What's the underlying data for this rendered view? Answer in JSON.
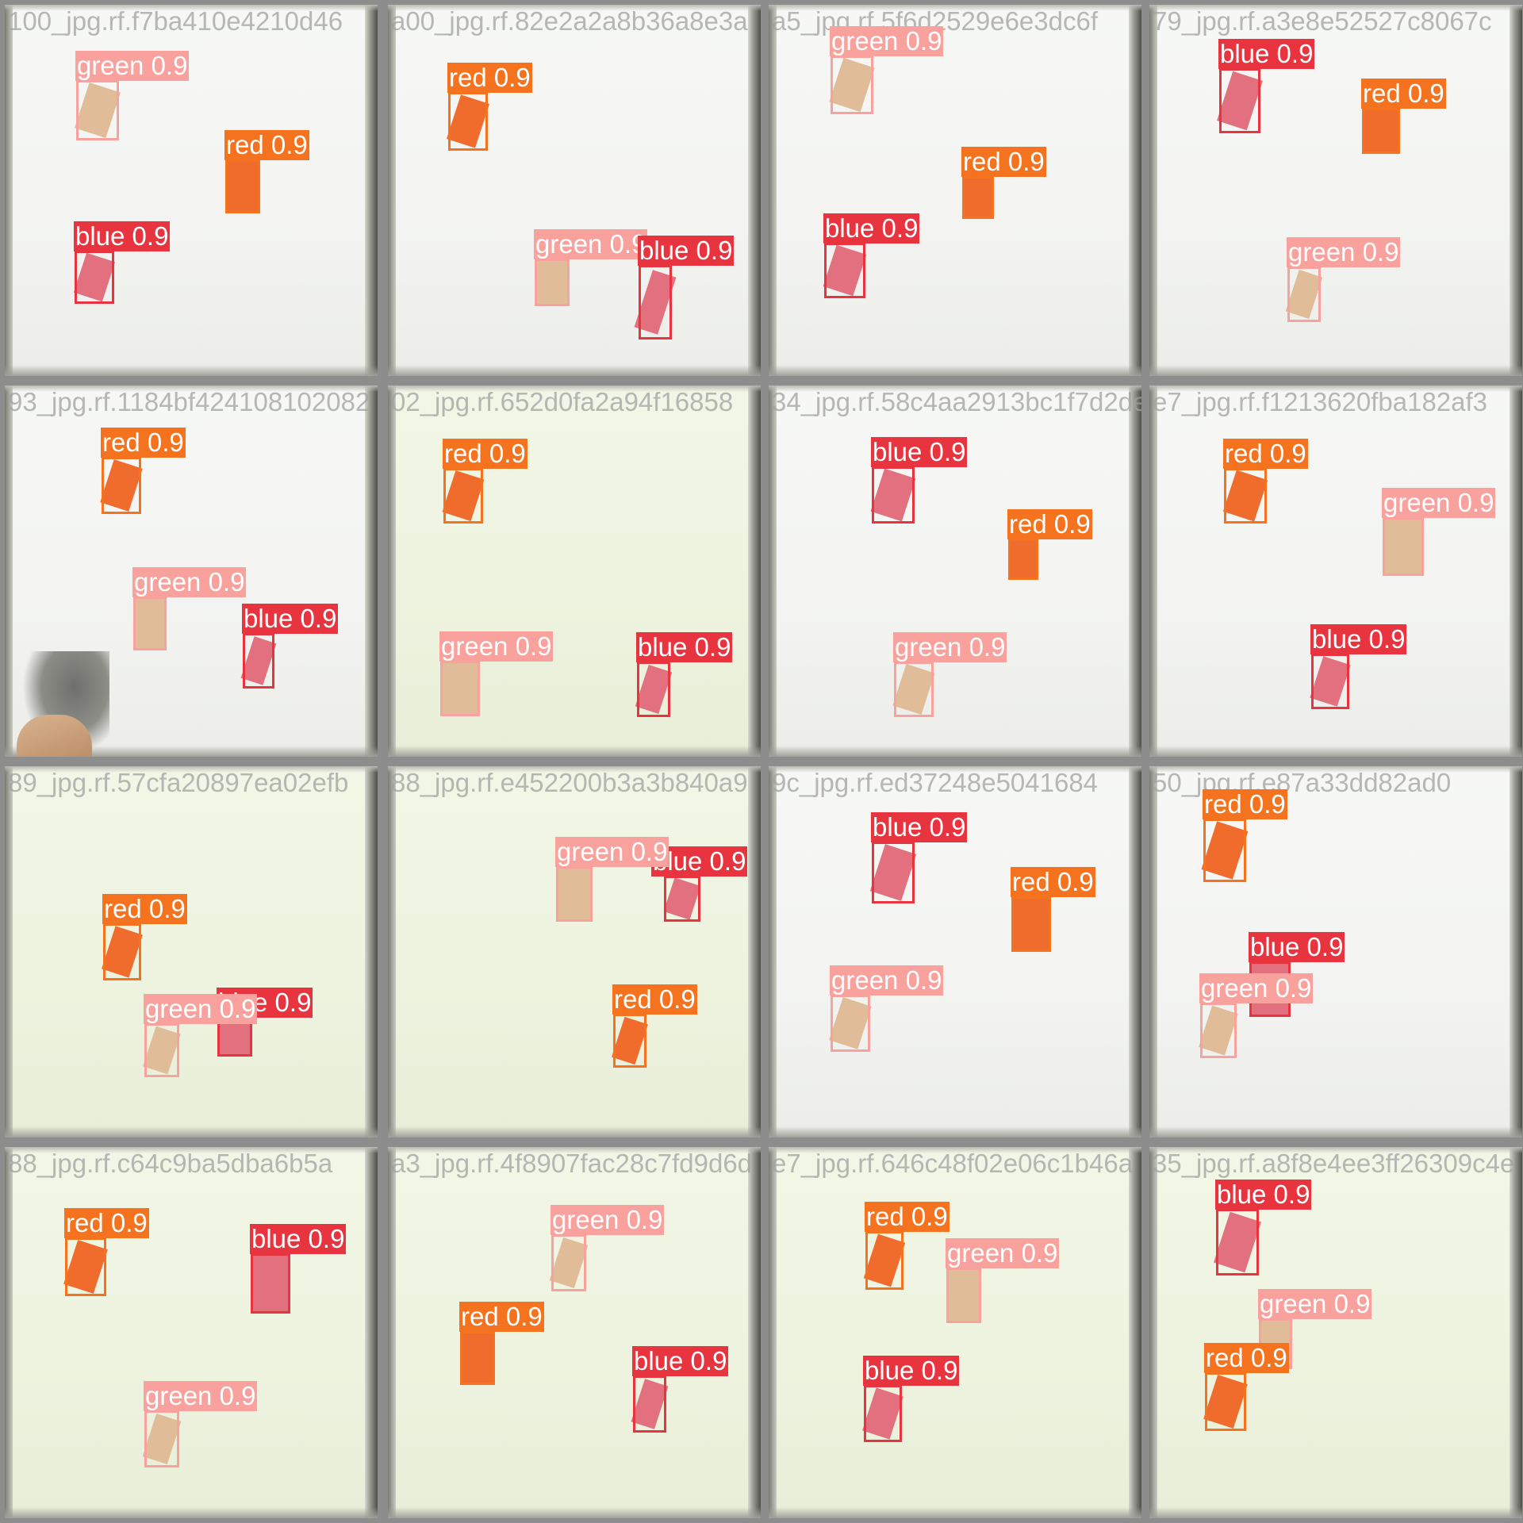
{
  "tiles": [
    {
      "filename": "100_jpg.rf.f7ba410e4210d46",
      "tint": false,
      "detections": [
        {
          "cls": "green",
          "label": "green 0.9"
        },
        {
          "cls": "red",
          "label": "red 0.9"
        },
        {
          "cls": "blue",
          "label": "blue 0.9"
        }
      ]
    },
    {
      "filename": "a00_jpg.rf.82e2a2a8b36a8e3a",
      "tint": false,
      "detections": [
        {
          "cls": "red",
          "label": "red 0.9"
        },
        {
          "cls": "green",
          "label": "green 0.9"
        },
        {
          "cls": "blue",
          "label": "blue 0.9"
        }
      ]
    },
    {
      "filename": "a5_jpg.rf.5f6d2529e6e3dc6f",
      "tint": false,
      "detections": [
        {
          "cls": "green",
          "label": "green 0.9"
        },
        {
          "cls": "red",
          "label": "red 0.9"
        },
        {
          "cls": "blue",
          "label": "blue 0.9"
        }
      ]
    },
    {
      "filename": "79_jpg.rf.a3e8e52527c8067c",
      "tint": false,
      "detections": [
        {
          "cls": "blue",
          "label": "blue 0.9"
        },
        {
          "cls": "red",
          "label": "red 0.9"
        },
        {
          "cls": "green",
          "label": "green 0.9"
        }
      ]
    },
    {
      "filename": "93_jpg.rf.1184bf424108102082",
      "tint": false,
      "hand": true,
      "detections": [
        {
          "cls": "red",
          "label": "red 0.9"
        },
        {
          "cls": "green",
          "label": "green 0.9"
        },
        {
          "cls": "blue",
          "label": "blue 0.9"
        }
      ]
    },
    {
      "filename": "02_jpg.rf.652d0fa2a94f16858",
      "tint": true,
      "detections": [
        {
          "cls": "red",
          "label": "red 0.9"
        },
        {
          "cls": "green",
          "label": "green 0.9"
        },
        {
          "cls": "blue",
          "label": "blue 0.9"
        }
      ]
    },
    {
      "filename": "34_jpg.rf.58c4aa2913bc1f7d2de",
      "tint": false,
      "detections": [
        {
          "cls": "blue",
          "label": "blue 0.9"
        },
        {
          "cls": "red",
          "label": "red 0.9"
        },
        {
          "cls": "green",
          "label": "green 0.9"
        }
      ]
    },
    {
      "filename": "e7_jpg.rf.f1213620fba182af3",
      "tint": false,
      "detections": [
        {
          "cls": "red",
          "label": "red 0.9"
        },
        {
          "cls": "green",
          "label": "green 0.9"
        },
        {
          "cls": "blue",
          "label": "blue 0.9"
        }
      ]
    },
    {
      "filename": "89_jpg.rf.57cfa20897ea02efb",
      "tint": true,
      "detections": [
        {
          "cls": "red",
          "label": "red 0.9"
        },
        {
          "cls": "blue",
          "label": "blue 0.9"
        },
        {
          "cls": "green",
          "label": "green 0.9"
        }
      ]
    },
    {
      "filename": "88_jpg.rf.e452200b3a3b840a9",
      "tint": true,
      "detections": [
        {
          "cls": "blue",
          "label": "blue 0.9"
        },
        {
          "cls": "green",
          "label": "green 0.9"
        },
        {
          "cls": "red",
          "label": "red 0.9"
        }
      ]
    },
    {
      "filename": "9c_jpg.rf.ed37248e5041684",
      "tint": false,
      "detections": [
        {
          "cls": "blue",
          "label": "blue 0.9"
        },
        {
          "cls": "red",
          "label": "red 0.9"
        },
        {
          "cls": "green",
          "label": "green 0.9"
        }
      ]
    },
    {
      "filename": "50_jpg.rf.e87a33dd82ad0",
      "tint": false,
      "detections": [
        {
          "cls": "red",
          "label": "red 0.9"
        },
        {
          "cls": "blue",
          "label": "blue 0.9"
        },
        {
          "cls": "green",
          "label": "green 0.9"
        }
      ]
    },
    {
      "filename": "88_jpg.rf.c64c9ba5dba6b5a",
      "tint": true,
      "detections": [
        {
          "cls": "red",
          "label": "red 0.9"
        },
        {
          "cls": "blue",
          "label": "blue 0.9"
        },
        {
          "cls": "green",
          "label": "green 0.9"
        }
      ]
    },
    {
      "filename": "a3_jpg.rf.4f8907fac28c7fd9d6d",
      "tint": true,
      "detections": [
        {
          "cls": "green",
          "label": "green 0.9"
        },
        {
          "cls": "red",
          "label": "red 0.9"
        },
        {
          "cls": "blue",
          "label": "blue 0.9"
        }
      ]
    },
    {
      "filename": "e7_jpg.rf.646c48f02e06c1b46a",
      "tint": true,
      "detections": [
        {
          "cls": "red",
          "label": "red 0.9"
        },
        {
          "cls": "green",
          "label": "green 0.9"
        },
        {
          "cls": "blue",
          "label": "blue 0.9"
        }
      ]
    },
    {
      "filename": "35_jpg.rf.a8f8e4ee3ff26309c4e",
      "tint": true,
      "detections": [
        {
          "cls": "blue",
          "label": "blue 0.9"
        },
        {
          "cls": "green",
          "label": "green 0.9"
        },
        {
          "cls": "red",
          "label": "red 0.9"
        }
      ]
    }
  ],
  "colors": {
    "red": "#f5731e",
    "blue": "#e8343e",
    "green": "#f8a19d",
    "grid_border": "#8d8d8d"
  }
}
